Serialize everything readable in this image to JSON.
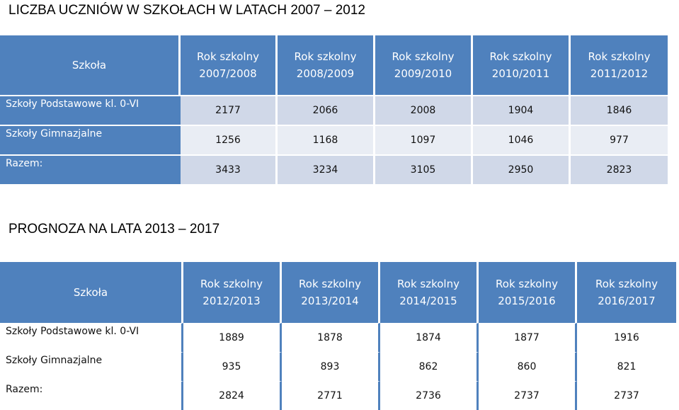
{
  "section1": {
    "title": "LICZBA UCZNIÓW W SZKOŁACH W LATACH 2007 – 2012",
    "header": {
      "school": "Szkoła",
      "years": [
        {
          "line1": "Rok szkolny",
          "line2": "2007/2008"
        },
        {
          "line1": "Rok szkolny",
          "line2": "2008/2009"
        },
        {
          "line1": "Rok szkolny",
          "line2": "2009/2010"
        },
        {
          "line1": "Rok szkolny",
          "line2": "2010/2011"
        },
        {
          "line1": "Rok szkolny",
          "line2": "2011/2012"
        }
      ]
    },
    "rows": [
      {
        "label": "Szkoły Podstawowe kl. 0-VI",
        "values": [
          "2177",
          "2066",
          "2008",
          "1904",
          "1846"
        ]
      },
      {
        "label": "Szkoły Gimnazjalne",
        "values": [
          "1256",
          "1168",
          "1097",
          "1046",
          "977"
        ]
      },
      {
        "label": "Razem:",
        "values": [
          "3433",
          "3234",
          "3105",
          "2950",
          "2823"
        ]
      }
    ]
  },
  "section2": {
    "title": "PROGNOZA NA LATA 2013 – 2017",
    "header": {
      "school": "Szkoła",
      "years": [
        {
          "line1": "Rok szkolny",
          "line2": "2012/2013"
        },
        {
          "line1": "Rok szkolny",
          "line2": "2013/2014"
        },
        {
          "line1": "Rok szkolny",
          "line2": "2014/2015"
        },
        {
          "line1": "Rok szkolny",
          "line2": "2015/2016"
        },
        {
          "line1": "Rok szkolny",
          "line2": "2016/2017"
        }
      ]
    },
    "rows": [
      {
        "label": "Szkoły Podstawowe kl. 0-VI",
        "values": [
          "1889",
          "1878",
          "1874",
          "1877",
          "1916"
        ]
      },
      {
        "label": "Szkoły Gimnazjalne",
        "values": [
          "935",
          "893",
          "862",
          "860",
          "821"
        ]
      },
      {
        "label": "Razem:",
        "values": [
          "2824",
          "2771",
          "2736",
          "2737",
          "2737"
        ]
      }
    ]
  },
  "colors": {
    "header": "#4f81bd",
    "row_dark": "#d0d8e8",
    "row_light": "#e9edf4"
  }
}
